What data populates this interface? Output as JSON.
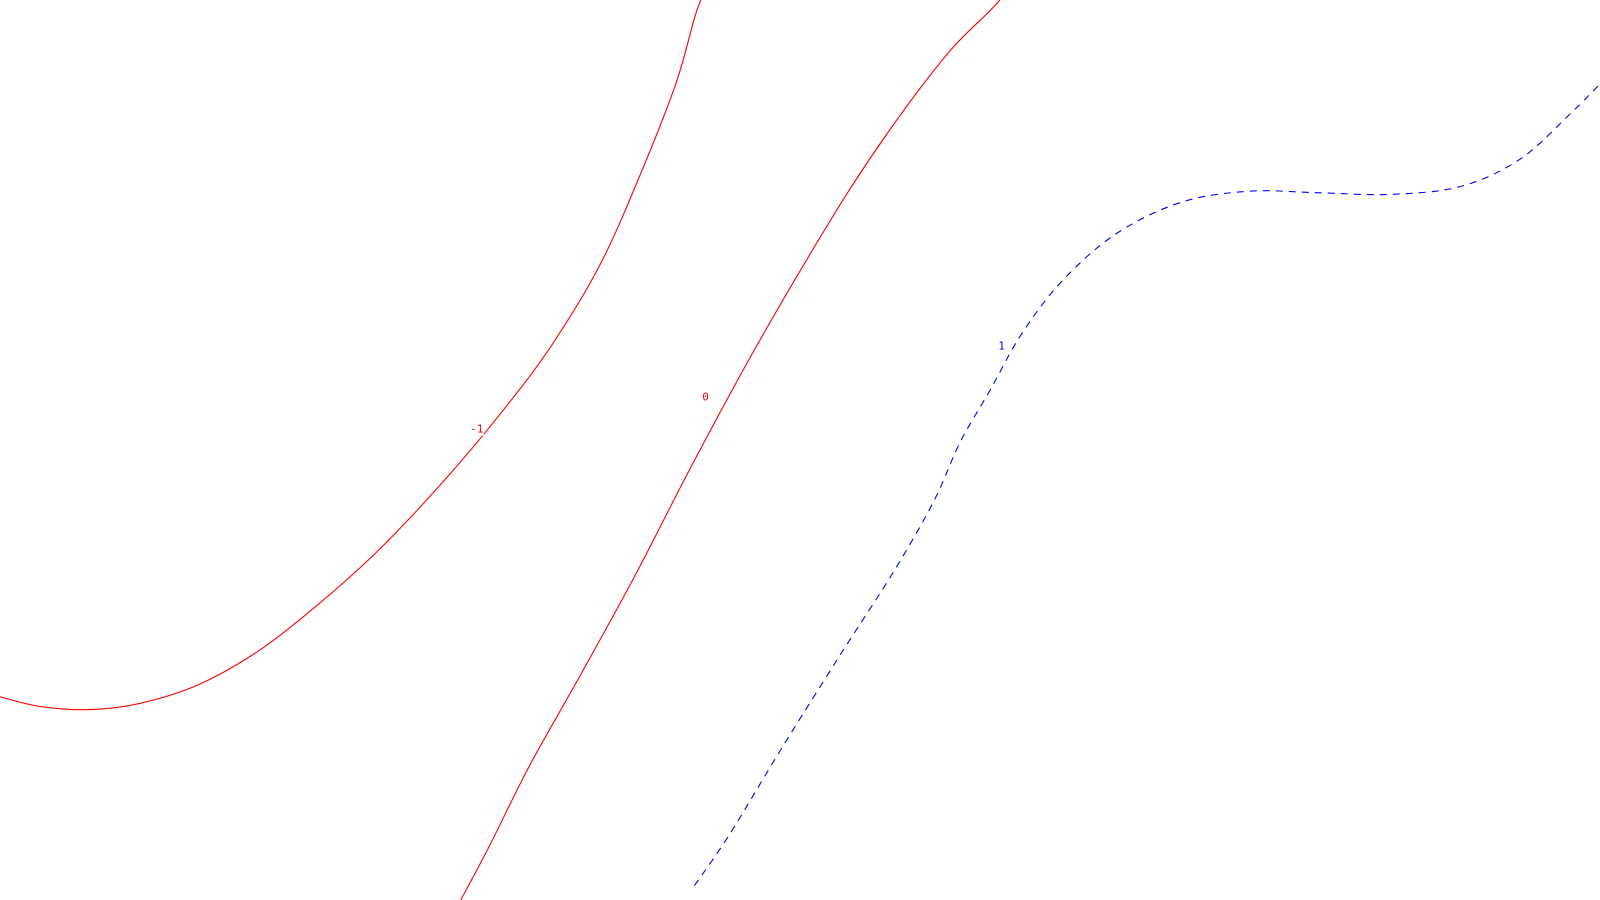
{
  "chart_data": {
    "type": "contour",
    "title": "",
    "xlabel": "",
    "ylabel": "",
    "grid": false,
    "legend": "none",
    "xlim": [
      0,
      100
    ],
    "ylim": [
      0,
      56.25
    ],
    "levels": [
      {
        "level": -1,
        "label": "-1",
        "color": "#ff0000",
        "style": "solid",
        "label_at": [
          29.8,
          29.4
        ],
        "points": [
          [
            0,
            12.7
          ],
          [
            2.5,
            12.1
          ],
          [
            5.5,
            11.9
          ],
          [
            8.8,
            12.3
          ],
          [
            12.5,
            13.5
          ],
          [
            16.2,
            15.6
          ],
          [
            19.8,
            18.4
          ],
          [
            23.8,
            22.0
          ],
          [
            28.1,
            26.6
          ],
          [
            31.6,
            30.8
          ],
          [
            34.5,
            34.7
          ],
          [
            37.5,
            39.7
          ],
          [
            40.0,
            45.3
          ],
          [
            42.2,
            50.9
          ],
          [
            43.4,
            55.1
          ],
          [
            43.8,
            56.25
          ]
        ]
      },
      {
        "level": 0,
        "label": "0",
        "color": "#ff0000",
        "style": "solid",
        "label_at": [
          44.1,
          31.4
        ],
        "points": [
          [
            28.8,
            0
          ],
          [
            30.6,
            3.4
          ],
          [
            33.1,
            8.4
          ],
          [
            36.3,
            14.1
          ],
          [
            39.7,
            20.3
          ],
          [
            43.1,
            26.9
          ],
          [
            46.6,
            33.4
          ],
          [
            49.7,
            38.8
          ],
          [
            53.1,
            44.4
          ],
          [
            56.3,
            49.1
          ],
          [
            59.4,
            53.1
          ],
          [
            61.8,
            55.5
          ],
          [
            62.5,
            56.25
          ]
        ]
      },
      {
        "level": 1,
        "label": "1",
        "color": "#0000ff",
        "style": "dashed",
        "label_at": [
          62.6,
          34.6
        ],
        "points": [
          [
            43.4,
            0.9
          ],
          [
            45.6,
            4.1
          ],
          [
            48.8,
            9.4
          ],
          [
            52.5,
            15.3
          ],
          [
            55.9,
            20.6
          ],
          [
            58.4,
            25.0
          ],
          [
            60.0,
            28.6
          ],
          [
            61.9,
            31.9
          ],
          [
            63.8,
            35.3
          ],
          [
            66.3,
            38.6
          ],
          [
            69.7,
            41.6
          ],
          [
            73.8,
            43.6
          ],
          [
            78.1,
            44.3
          ],
          [
            82.5,
            44.2
          ],
          [
            86.9,
            44.1
          ],
          [
            91.3,
            44.6
          ],
          [
            95.0,
            46.3
          ],
          [
            98.1,
            49.1
          ],
          [
            100,
            51.0
          ]
        ]
      }
    ]
  }
}
